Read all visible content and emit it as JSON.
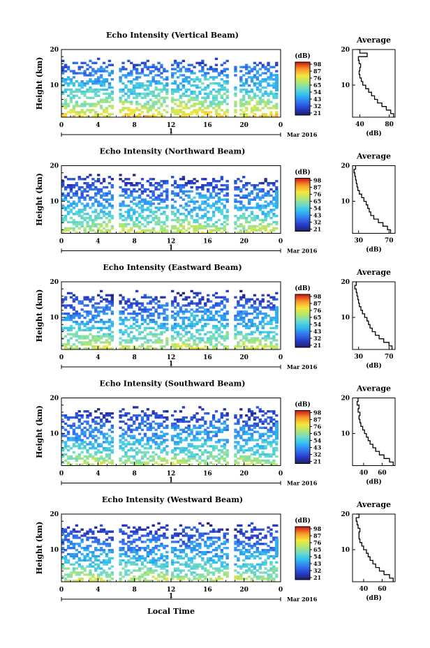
{
  "figure": {
    "bottom_xlabel": "Local Time"
  },
  "chart_data": [
    {
      "type": "heatmap",
      "title": "Echo Intensity (Vertical Beam)",
      "ylabel": "Height (km)",
      "xlim": [
        0,
        24
      ],
      "ylim": [
        1,
        20
      ],
      "x_ticks": [
        "0",
        "4",
        "8",
        "12",
        "16",
        "20",
        "0"
      ],
      "y_ticks": [
        "20",
        "10"
      ],
      "date_mark": "1",
      "date_label": "Mar 2016",
      "colorbar": {
        "label": "(dB)",
        "ticks": [
          "98",
          "87",
          "76",
          "65",
          "54",
          "43",
          "32",
          "21"
        ]
      },
      "data_gaps_hours": [
        6.0,
        11.8,
        18.6,
        19.3
      ],
      "surface_peak_db": 87,
      "top_db": 32,
      "rx": 0.02,
      "profile": {
        "title": "Average",
        "xlabel": "(dB)",
        "x_ticks": [
          "40",
          "80"
        ],
        "xlim": [
          30,
          88
        ],
        "y_ticks": [
          "20",
          "10"
        ],
        "height_km": [
          1,
          2,
          3,
          4,
          5,
          6,
          7,
          8,
          9,
          10,
          11,
          12,
          13,
          14,
          15,
          16,
          17,
          18,
          19,
          20
        ],
        "avg_db": [
          86,
          82,
          76,
          70,
          64,
          60,
          56,
          52,
          48,
          44,
          42,
          40,
          39,
          40,
          41,
          39,
          38,
          50,
          40,
          36
        ]
      }
    },
    {
      "type": "heatmap",
      "title": "Echo Intensity (Northward Beam)",
      "ylabel": "Height (km)",
      "xlim": [
        0,
        24
      ],
      "ylim": [
        1,
        20
      ],
      "x_ticks": [
        "0",
        "4",
        "8",
        "12",
        "16",
        "20",
        "0"
      ],
      "y_ticks": [
        "20",
        "10"
      ],
      "date_mark": "1",
      "date_label": "Mar 2016",
      "colorbar": {
        "label": "(dB)",
        "ticks": [
          "98",
          "87",
          "76",
          "65",
          "54",
          "43",
          "32",
          "21"
        ]
      },
      "data_gaps_hours": [
        6.0,
        11.8,
        18.6
      ],
      "surface_peak_db": 80,
      "top_db": 27,
      "rx": 0.2,
      "profile": {
        "title": "Average",
        "xlabel": "(dB)",
        "x_ticks": [
          "30",
          "70"
        ],
        "xlim": [
          22,
          78
        ],
        "y_ticks": [
          "20",
          "10"
        ],
        "height_km": [
          1,
          2,
          3,
          4,
          5,
          6,
          7,
          8,
          9,
          10,
          11,
          12,
          13,
          14,
          15,
          16,
          17,
          18,
          19,
          20
        ],
        "avg_db": [
          72,
          68,
          62,
          56,
          50,
          46,
          44,
          42,
          40,
          37,
          34,
          31,
          29,
          28,
          27,
          26,
          25,
          24,
          26,
          25
        ]
      }
    },
    {
      "type": "heatmap",
      "title": "Echo Intensity (Eastward Beam)",
      "ylabel": "Height (km)",
      "xlim": [
        0,
        24
      ],
      "ylim": [
        1,
        20
      ],
      "x_ticks": [
        "0",
        "4",
        "8",
        "12",
        "16",
        "20",
        "0"
      ],
      "y_ticks": [
        "20",
        "10"
      ],
      "date_mark": "1",
      "date_label": "Mar 2016",
      "colorbar": {
        "label": "(dB)",
        "ticks": [
          "98",
          "87",
          "76",
          "65",
          "54",
          "43",
          "32",
          "21"
        ]
      },
      "data_gaps_hours": [
        6.0,
        11.8,
        18.6
      ],
      "surface_peak_db": 80,
      "top_db": 27,
      "rx": 0.4,
      "profile": {
        "title": "Average",
        "xlabel": "(dB)",
        "x_ticks": [
          "30",
          "70"
        ],
        "xlim": [
          22,
          78
        ],
        "y_ticks": [
          "20",
          "10"
        ],
        "height_km": [
          1,
          2,
          3,
          4,
          5,
          6,
          7,
          8,
          9,
          10,
          11,
          12,
          13,
          14,
          15,
          16,
          17,
          18,
          19,
          20
        ],
        "avg_db": [
          74,
          70,
          63,
          57,
          52,
          48,
          45,
          43,
          41,
          38,
          35,
          33,
          31,
          30,
          29,
          28,
          27,
          25,
          27,
          26
        ]
      }
    },
    {
      "type": "heatmap",
      "title": "Echo Intensity (Southward Beam)",
      "ylabel": "Height (km)",
      "xlim": [
        0,
        24
      ],
      "ylim": [
        1,
        20
      ],
      "x_ticks": [
        "0",
        "4",
        "8",
        "12",
        "16",
        "20",
        "0"
      ],
      "y_ticks": [
        "20",
        "10"
      ],
      "date_mark": "1",
      "date_label": "Mar 2016",
      "colorbar": {
        "label": "(dB)",
        "ticks": [
          "98",
          "87",
          "76",
          "65",
          "54",
          "43",
          "32",
          "21"
        ]
      },
      "data_gaps_hours": [
        6.0,
        11.8,
        18.6
      ],
      "surface_peak_db": 78,
      "top_db": 27,
      "rx": 0.6,
      "profile": {
        "title": "Average",
        "xlabel": "(dB)",
        "x_ticks": [
          "40",
          "60"
        ],
        "xlim": [
          28,
          74
        ],
        "y_ticks": [
          "20",
          "10"
        ],
        "height_km": [
          1,
          2,
          3,
          4,
          5,
          6,
          7,
          8,
          9,
          10,
          11,
          12,
          13,
          14,
          15,
          16,
          17,
          18,
          19,
          20
        ],
        "avg_db": [
          72,
          68,
          62,
          57,
          53,
          50,
          47,
          45,
          43,
          41,
          39,
          37,
          36,
          35,
          36,
          34,
          35,
          33,
          34,
          33
        ]
      }
    },
    {
      "type": "heatmap",
      "title": "Echo Intensity (Westward Beam)",
      "ylabel": "Height (km)",
      "xlim": [
        0,
        24
      ],
      "ylim": [
        1,
        20
      ],
      "x_ticks": [
        "0",
        "4",
        "8",
        "12",
        "16",
        "20",
        "0"
      ],
      "y_ticks": [
        "20",
        "10"
      ],
      "date_mark": "1",
      "date_label": "Mar 2016",
      "colorbar": {
        "label": "(dB)",
        "ticks": [
          "98",
          "87",
          "76",
          "65",
          "54",
          "43",
          "32",
          "21"
        ]
      },
      "data_gaps_hours": [
        6.0,
        11.8,
        18.6
      ],
      "surface_peak_db": 78,
      "top_db": 27,
      "rx": 0.8,
      "profile": {
        "title": "Average",
        "xlabel": "(dB)",
        "x_ticks": [
          "40",
          "60"
        ],
        "xlim": [
          28,
          74
        ],
        "y_ticks": [
          "20",
          "10"
        ],
        "height_km": [
          1,
          2,
          3,
          4,
          5,
          6,
          7,
          8,
          9,
          10,
          11,
          12,
          13,
          14,
          15,
          16,
          17,
          18,
          19,
          20
        ],
        "avg_db": [
          72,
          68,
          62,
          57,
          53,
          50,
          47,
          45,
          43,
          40,
          38,
          36,
          35,
          35,
          36,
          34,
          33,
          32,
          35,
          32
        ]
      }
    }
  ]
}
